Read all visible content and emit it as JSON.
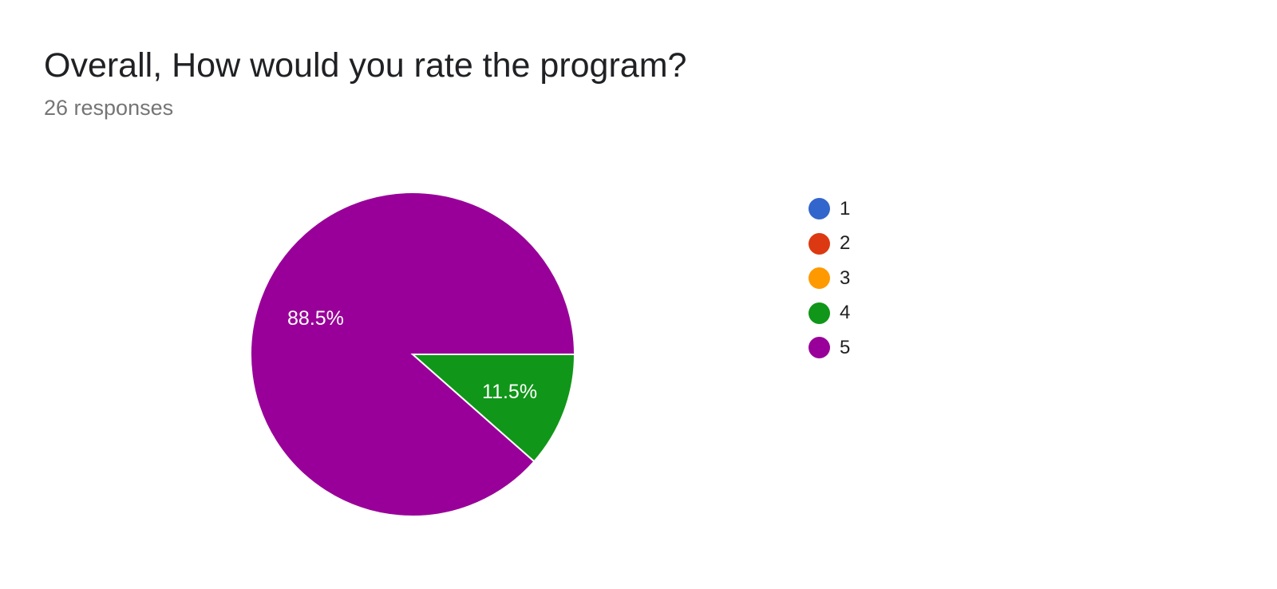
{
  "title": "Overall, How would you rate the program?",
  "subtitle": "26 responses",
  "chart_data": {
    "type": "pie",
    "title": "Overall, How would you rate the program?",
    "categories": [
      "1",
      "2",
      "3",
      "4",
      "5"
    ],
    "values": [
      0,
      0,
      0,
      11.5,
      88.5
    ],
    "value_labels": [
      "",
      "",
      "",
      "11.5%",
      "88.5%"
    ],
    "colors": [
      "#3366cc",
      "#dc3912",
      "#ff9900",
      "#109618",
      "#990099"
    ],
    "label_color": "#ffffff",
    "legend_position": "right"
  }
}
